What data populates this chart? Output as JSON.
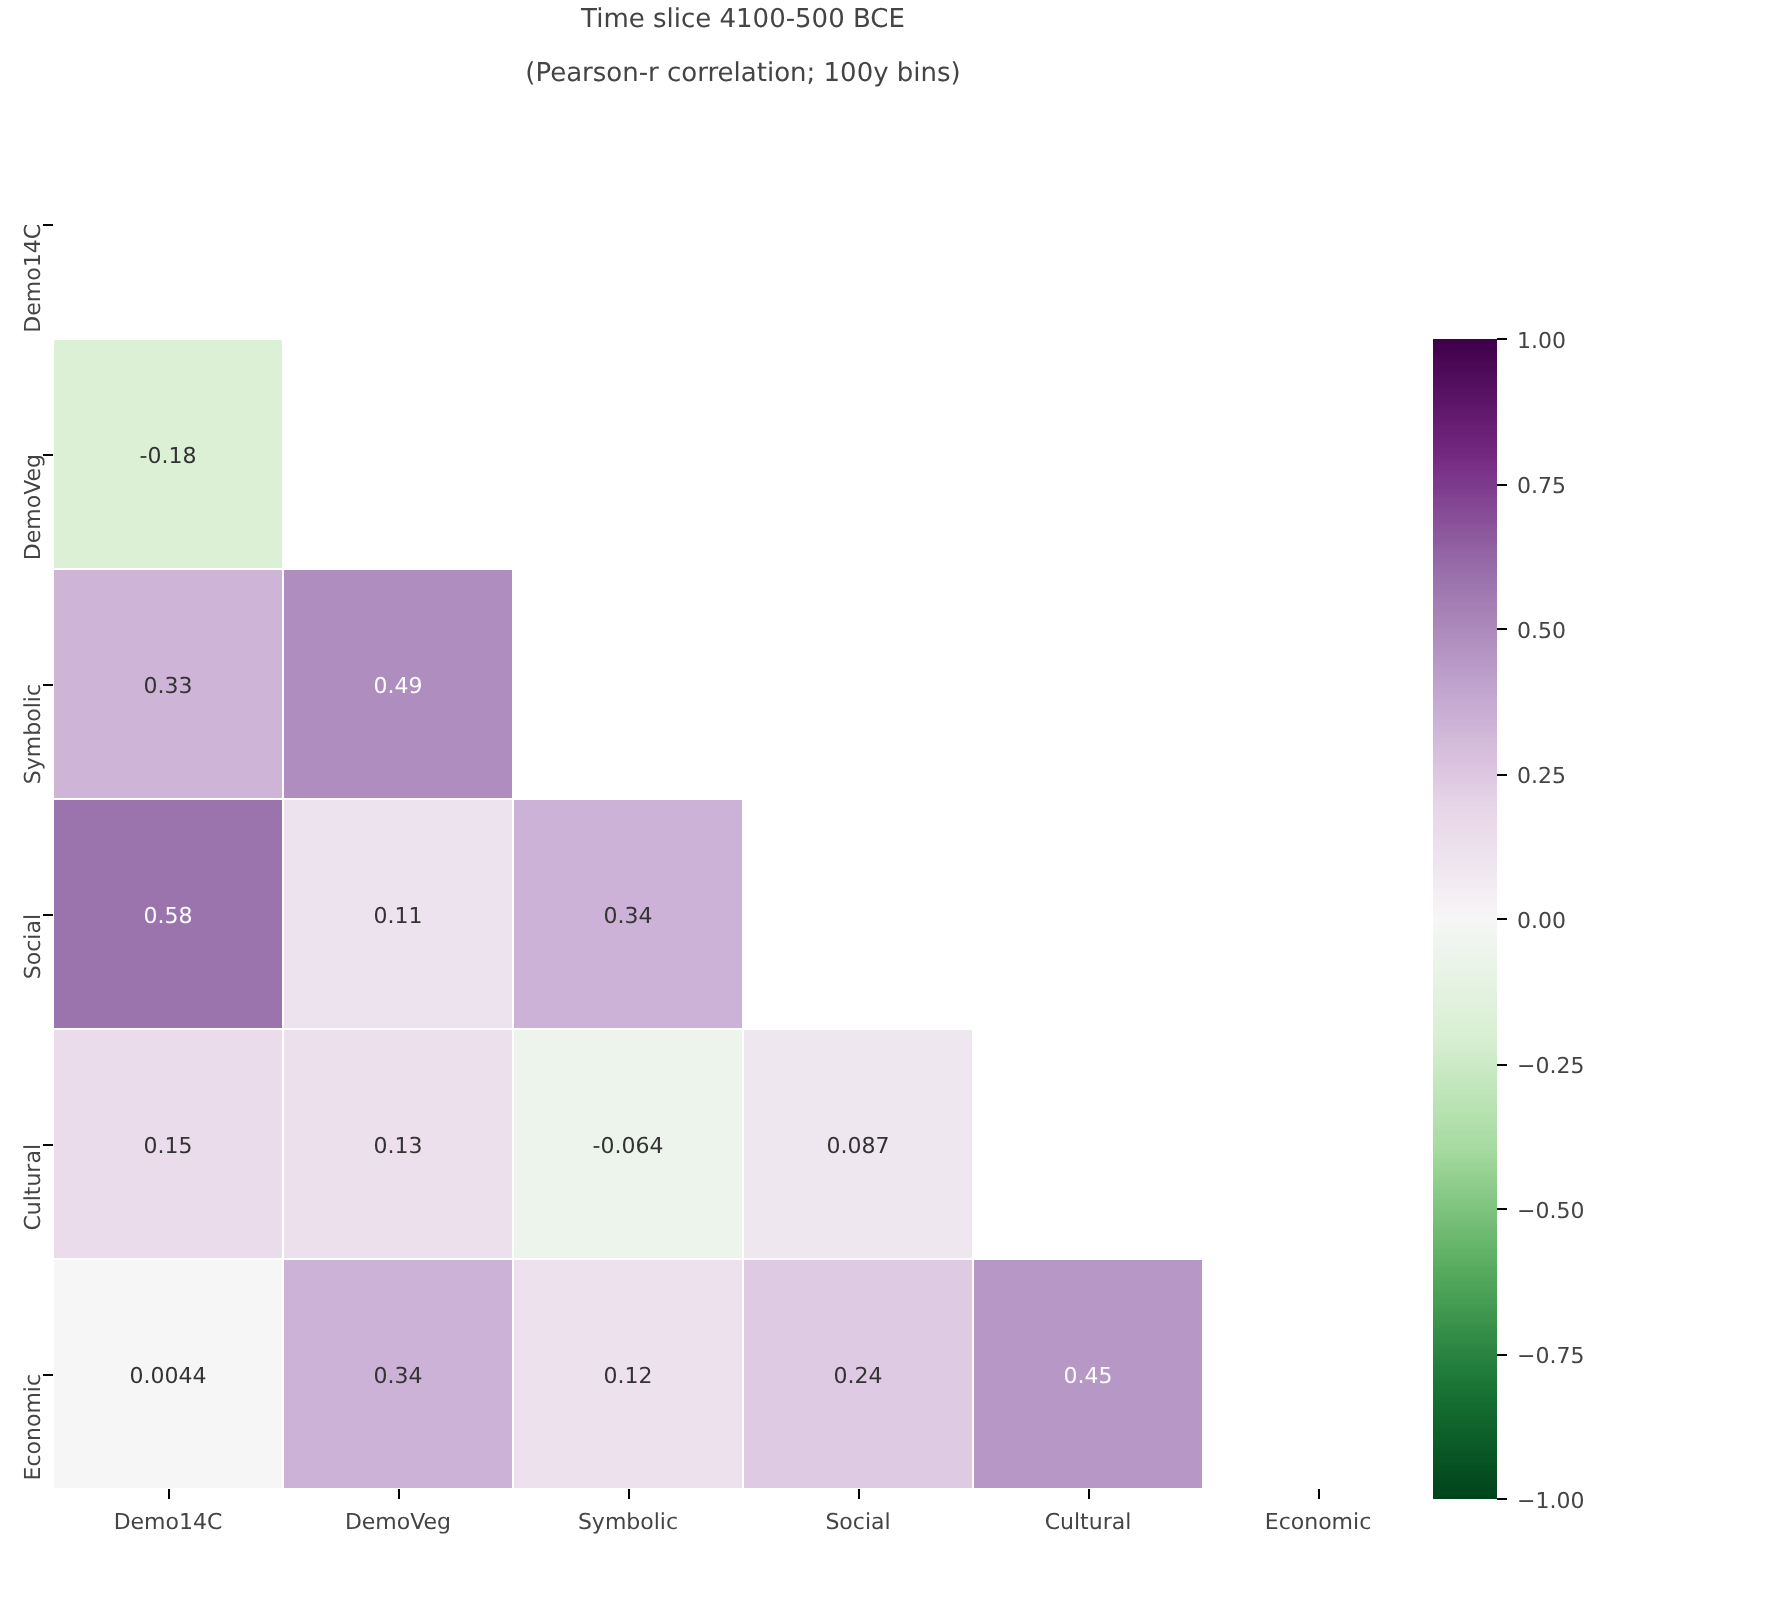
{
  "chart_data": {
    "type": "heatmap",
    "title": "Time slice 4100-500 BCE",
    "subtitle": "(Pearson-r correlation; 100y bins)",
    "categories": [
      "Demo14C",
      "DemoVeg",
      "Symbolic",
      "Social",
      "Cultural",
      "Economic"
    ],
    "y_categories": [
      "Demo14C",
      "DemoVeg",
      "Symbolic",
      "Social",
      "Cultural",
      "Economic"
    ],
    "cells": [
      [
        null,
        null,
        null,
        null,
        null,
        null
      ],
      [
        -0.18,
        null,
        null,
        null,
        null,
        null
      ],
      [
        0.33,
        0.49,
        null,
        null,
        null,
        null
      ],
      [
        0.58,
        0.11,
        0.34,
        null,
        null,
        null
      ],
      [
        0.15,
        0.13,
        -0.064,
        0.087,
        null,
        null
      ],
      [
        0.0044,
        0.34,
        0.12,
        0.24,
        0.45,
        null
      ]
    ],
    "data_labels": true,
    "clim": [
      -1,
      1
    ],
    "cticks": [
      {
        "value": -1,
        "label": "−1.00"
      },
      {
        "value": -0.75,
        "label": "−0.75"
      },
      {
        "value": -0.5,
        "label": "−0.50"
      },
      {
        "value": -0.25,
        "label": "−0.25"
      },
      {
        "value": 0,
        "label": "0.00"
      },
      {
        "value": 0.25,
        "label": "0.25"
      },
      {
        "value": 0.5,
        "label": "0.50"
      },
      {
        "value": 0.75,
        "label": "0.75"
      },
      {
        "value": 1,
        "label": "1.00"
      }
    ]
  }
}
